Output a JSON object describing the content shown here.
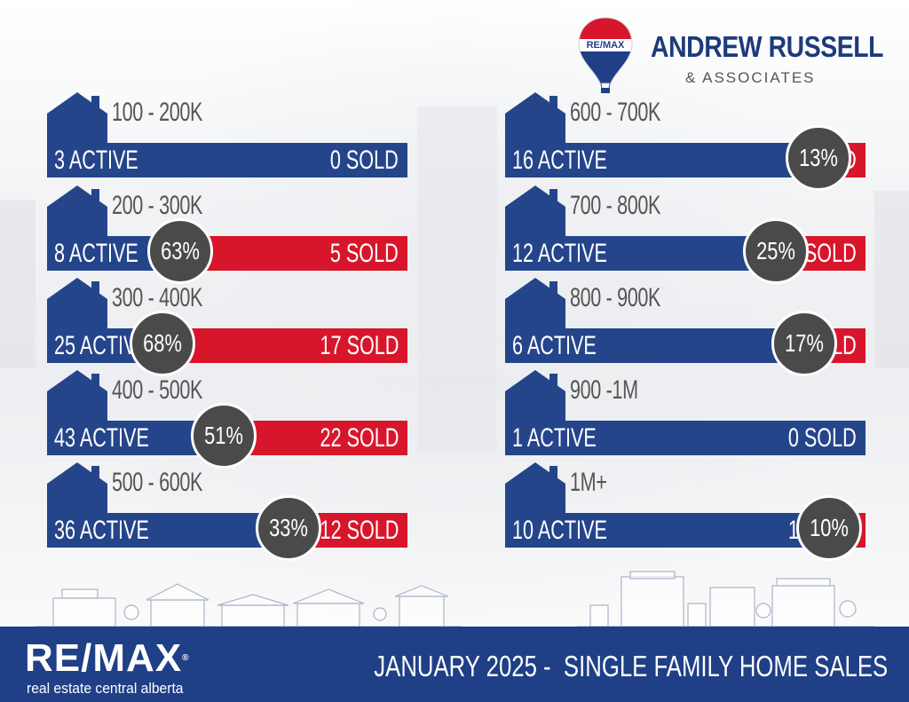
{
  "brand": {
    "balloon_text": "RE/MAX",
    "name": "ANDREW RUSSELL",
    "sub": "& ASSOCIATES"
  },
  "colors": {
    "active": "#25458b",
    "sold": "#d8162b",
    "badge": "#4a4a4a",
    "footer": "#1f3f86"
  },
  "chart_data": {
    "type": "bar",
    "categories": [
      "100 - 200K",
      "200 - 300K",
      "300 - 400K",
      "400 - 500K",
      "500 - 600K",
      "600 - 700K",
      "700 - 800K",
      "800 - 900K",
      "900 -1M",
      "1M+"
    ],
    "series": [
      {
        "name": "ACTIVE",
        "values": [
          3,
          8,
          25,
          43,
          36,
          16,
          12,
          6,
          1,
          10
        ]
      },
      {
        "name": "SOLD",
        "values": [
          0,
          5,
          17,
          22,
          12,
          2,
          3,
          1,
          0,
          1
        ]
      }
    ],
    "labels": {
      "active": [
        "3 ACTIVE",
        "8 ACTIVE",
        "25 ACTIVE",
        "43 ACTIVE",
        "36 ACTIVE",
        "16 ACTIVE",
        "12 ACTIVE",
        "6 ACTIVE",
        "1 ACTIVE",
        "10 ACTIVE"
      ],
      "sold": [
        "0 SOLD",
        "5 SOLD",
        "17 SOLD",
        "22 SOLD",
        "12 SOLD",
        "2 SOLD",
        "3 SOLD",
        "1 SOLD",
        "0 SOLD",
        "1 SOLD"
      ],
      "percent": [
        "",
        "63%",
        "68%",
        "51%",
        "33%",
        "13%",
        "25%",
        "17%",
        "",
        "10%"
      ]
    },
    "sold_share": [
      0,
      0.63,
      0.68,
      0.51,
      0.33,
      0.13,
      0.25,
      0.17,
      0,
      0.1
    ]
  },
  "footer": {
    "logo": "RE/MAX",
    "tagline": "real estate central alberta",
    "title": "JANUARY 2025 -  SINGLE FAMILY HOME SALES"
  }
}
